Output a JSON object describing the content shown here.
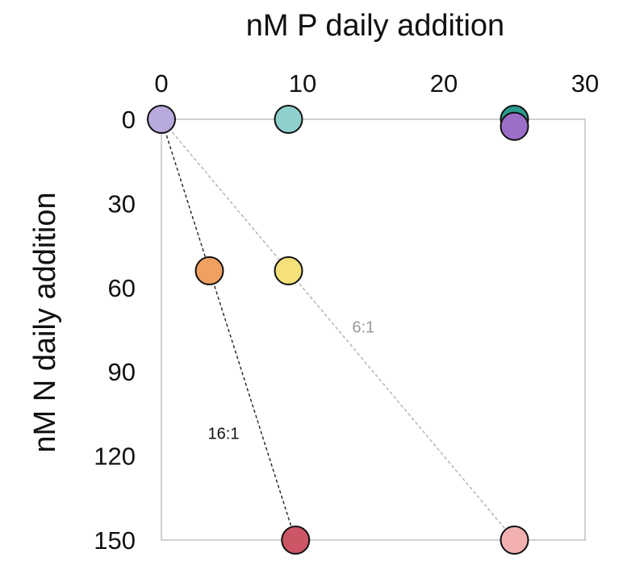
{
  "chart_data": {
    "type": "scatter",
    "title": "nM P daily addition",
    "xlabel": "nM P daily addition",
    "ylabel": "nM N daily addition",
    "x_axis_position": "top",
    "y_axis_inverted": true,
    "xlim": [
      0,
      30
    ],
    "ylim": [
      0,
      150
    ],
    "x_ticks": [
      "0",
      "10",
      "20",
      "30"
    ],
    "y_ticks": [
      "0",
      "30",
      "60",
      "90",
      "120",
      "150"
    ],
    "grid": false,
    "frame_color": "#c0c0c0",
    "points": [
      {
        "x": 0,
        "y": 0,
        "color": "#b8aadd"
      },
      {
        "x": 9,
        "y": 0,
        "color": "#8fcfcc"
      },
      {
        "x": 25,
        "y": 0,
        "color": "#2a9a8e"
      },
      {
        "x": 25,
        "y": 2.5,
        "color": "#9b6ec8"
      },
      {
        "x": 3.4,
        "y": 54,
        "color": "#f0a060"
      },
      {
        "x": 9,
        "y": 54,
        "color": "#f5e07a"
      },
      {
        "x": 9.5,
        "y": 150,
        "color": "#cc5566"
      },
      {
        "x": 25,
        "y": 150,
        "color": "#f2b0b0"
      }
    ],
    "reference_lines": [
      {
        "label": "16:1",
        "x": [
          0,
          9.5
        ],
        "y": [
          0,
          150
        ],
        "color": "#222222",
        "label_x": 4.4,
        "label_y": 114
      },
      {
        "label": "6:1",
        "x": [
          0,
          25
        ],
        "y": [
          0,
          150
        ],
        "color": "#b0b0b0",
        "label_x": 14.3,
        "label_y": 76
      }
    ]
  }
}
